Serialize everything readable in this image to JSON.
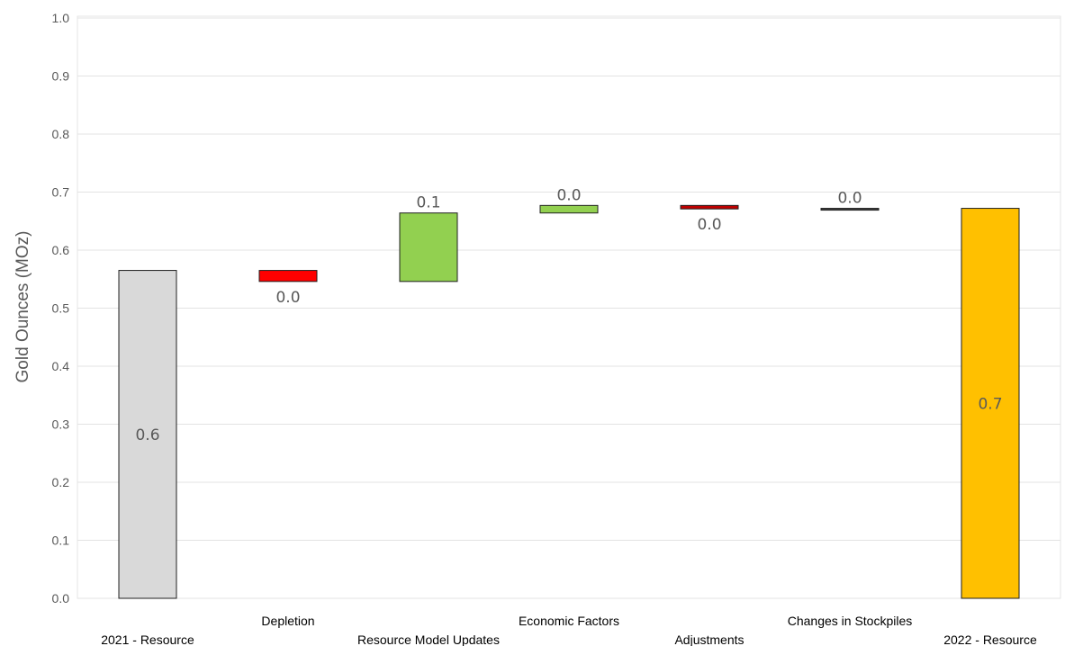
{
  "chart_data": {
    "type": "bar",
    "subtype": "waterfall",
    "title": "",
    "xlabel": "",
    "ylabel": "Gold Ounces (MOz)",
    "ylim": [
      0.0,
      1.0
    ],
    "yticks": [
      "0.0",
      "0.1",
      "0.2",
      "0.3",
      "0.4",
      "0.5",
      "0.6",
      "0.7",
      "0.8",
      "0.9",
      "1.0"
    ],
    "grid": true,
    "categories": [
      "2021 - Resource",
      "Depletion",
      "Resource Model Updates",
      "Economic Factors",
      "Adjustments",
      "Changes in Stockpiles",
      "2022 - Resource"
    ],
    "bars": [
      {
        "start": 0.0,
        "end": 0.565,
        "label": "0.6",
        "color": "#d9d9d9"
      },
      {
        "start": 0.565,
        "end": 0.546,
        "label": "0.0",
        "color": "#ff0000"
      },
      {
        "start": 0.546,
        "end": 0.664,
        "label": "0.1",
        "color": "#92d050"
      },
      {
        "start": 0.664,
        "end": 0.677,
        "label": "0.0",
        "color": "#92d050"
      },
      {
        "start": 0.677,
        "end": 0.671,
        "label": "0.0",
        "color": "#c00000"
      },
      {
        "start": 0.671,
        "end": 0.672,
        "label": "0.0",
        "color": "#404040"
      },
      {
        "start": 0.0,
        "end": 0.672,
        "label": "0.7",
        "color": "#ffc000"
      }
    ]
  }
}
